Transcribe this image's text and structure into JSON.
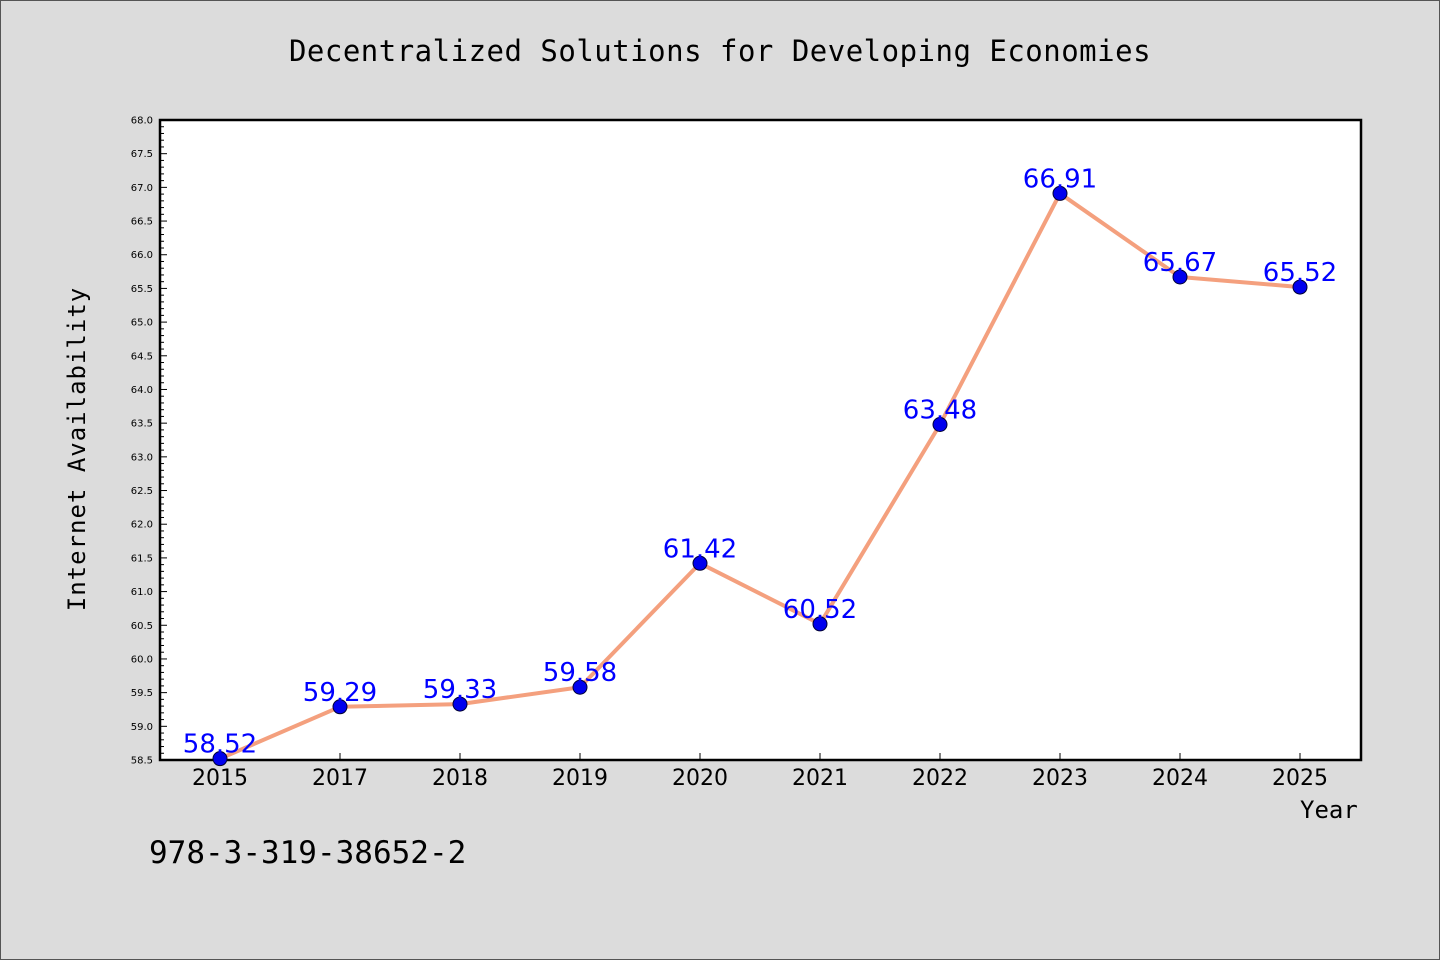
{
  "chart_data": {
    "type": "line",
    "title": "Decentralized Solutions for Developing Economies",
    "xlabel": "Year",
    "ylabel": "Internet Availability",
    "categories": [
      "2015",
      "2017",
      "2018",
      "2019",
      "2020",
      "2021",
      "2022",
      "2023",
      "2024",
      "2025"
    ],
    "series": [
      {
        "values": [
          58.52,
          59.29,
          59.33,
          59.58,
          61.42,
          60.52,
          63.48,
          66.91,
          65.67,
          65.52
        ],
        "line_color": "#f4a07e",
        "marker_color": "#0000ee",
        "label_color": "#0000ff"
      }
    ],
    "data_labels": [
      "58.52",
      "59.29",
      "59.33",
      "59.58",
      "61.42",
      "60.52",
      "63.48",
      "66.91",
      "65.67",
      "65.52"
    ],
    "ylim": [
      58.5,
      68.0
    ],
    "y_ticks": [
      "58.5",
      "59.0",
      "59.5",
      "60.0",
      "60.5",
      "61.0",
      "61.5",
      "62.0",
      "62.5",
      "63.0",
      "63.5",
      "64.0",
      "64.5",
      "65.0",
      "65.5",
      "66.0",
      "66.5",
      "67.0",
      "67.5",
      "68.0"
    ],
    "grid": false,
    "legend": "none"
  },
  "footnote": "978-3-319-38652-2"
}
